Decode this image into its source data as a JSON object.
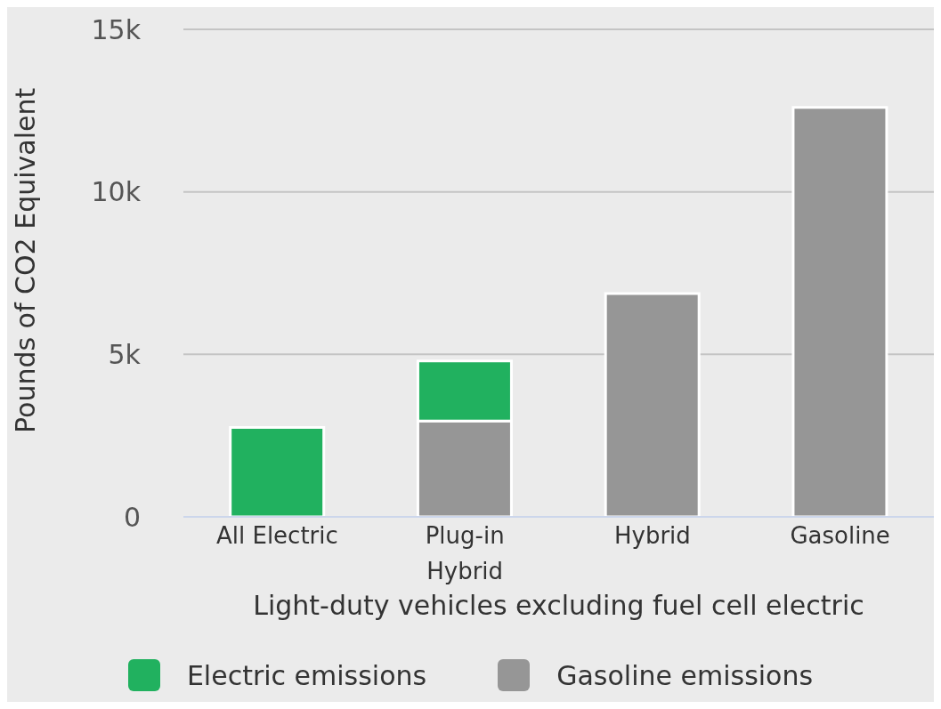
{
  "chart_data": {
    "type": "bar",
    "stacked": true,
    "xlabel": "Light-duty vehicles excluding fuel cell electric",
    "ylabel": "Pounds of CO2 Equivalent",
    "categories": [
      "All Electric",
      "Plug-in Hybrid",
      "Hybrid",
      "Gasoline"
    ],
    "series": [
      {
        "name": "Gasoline emissions",
        "color": "#969696",
        "values": [
          null,
          2950,
          6870,
          12600
        ]
      },
      {
        "name": "Electric emissions",
        "color": "#21b15f",
        "values": [
          2750,
          1850,
          null,
          null
        ]
      }
    ],
    "ylim": [
      0,
      15000
    ],
    "yticks": [
      {
        "value": 0,
        "label": "0"
      },
      {
        "value": 5000,
        "label": "5k"
      },
      {
        "value": 10000,
        "label": "10k"
      },
      {
        "value": 15000,
        "label": "15k"
      }
    ],
    "grid": "y",
    "legend": "bottom"
  }
}
